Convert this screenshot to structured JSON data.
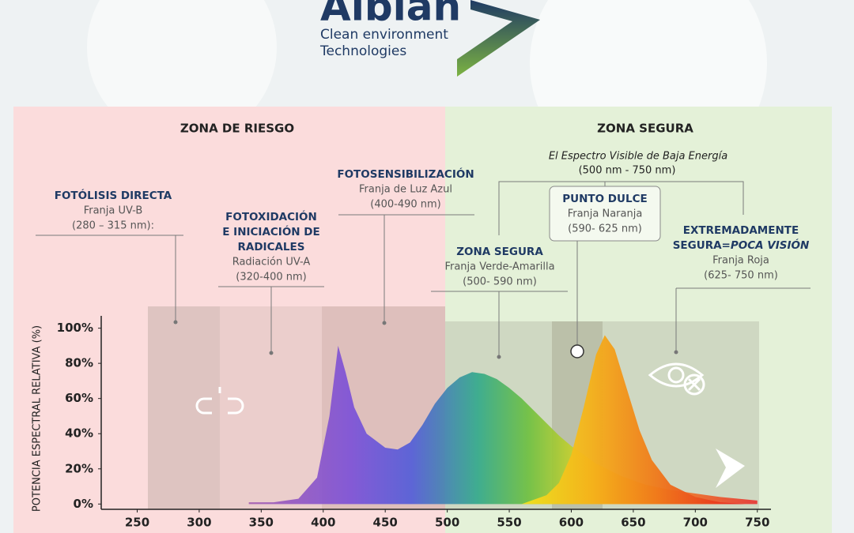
{
  "logo": {
    "name": "Albian",
    "tagline": [
      "Clean environment",
      "Technologies"
    ]
  },
  "zones": [
    "ZONA DE RIESGO",
    "ZONA SEGURA"
  ],
  "visible_spectrum": [
    "El Espectro Visible de Baja Energía",
    "(500 nm - 750 nm)"
  ],
  "annotations": [
    {
      "title": [
        "FOTÓLISIS DIRECTA"
      ],
      "lines": [
        "Franja UV-B",
        "(280 – 315 nm):"
      ]
    },
    {
      "title": [
        "FOTOXIDACIÓN",
        "E INICIACIÓN DE",
        "RADICALES"
      ],
      "lines": [
        "Radiación UV-A",
        "(320-400 nm)"
      ]
    },
    {
      "title": [
        "FOTOSENSIBILIZACIÓN"
      ],
      "lines": [
        "Franja de Luz Azul",
        "(400-490 nm)"
      ]
    },
    {
      "title": [
        "ZONA SEGURA"
      ],
      "lines": [
        "Franja Verde-Amarilla",
        "(500- 590 nm)"
      ]
    },
    {
      "title": [
        "PUNTO DULCE"
      ],
      "lines": [
        "Franja Naranja",
        "(590- 625 nm)"
      ]
    },
    {
      "title": [
        "EXTREMADAMENTE",
        "SEGURA="
      ],
      "title_emphasis": "POCA VISIÓN",
      "lines": [
        "Franja Roja",
        "(625- 750 nm)"
      ]
    }
  ],
  "chart_data": {
    "type": "area",
    "y_label": "POTENCIA ESPECTRAL RELATIVA (%)",
    "xlim": [
      221,
      761
    ],
    "xticks": [
      250,
      300,
      350,
      400,
      450,
      500,
      550,
      600,
      650,
      700,
      750
    ],
    "ylim": [
      -3,
      107
    ],
    "yticks": [
      {
        "value": 0,
        "label": "0%"
      },
      {
        "value": 20,
        "label": "20%"
      },
      {
        "value": 40,
        "label": "40%"
      },
      {
        "value": 60,
        "label": "60%"
      },
      {
        "value": 80,
        "label": "80%"
      },
      {
        "value": 100,
        "label": "100%"
      }
    ],
    "series": [
      {
        "x": [
          340,
          360,
          380,
          395,
          405,
          412,
          418,
          425,
          435,
          450,
          460,
          470,
          480,
          490,
          500,
          510,
          520,
          530,
          540,
          550,
          560,
          570,
          580,
          590,
          600,
          620,
          640,
          660,
          680,
          700,
          720,
          750
        ],
        "values": [
          1,
          1,
          3,
          15,
          50,
          90,
          75,
          55,
          40,
          32,
          31,
          35,
          45,
          57,
          66,
          72,
          75,
          74,
          71,
          66,
          60,
          53,
          46,
          39,
          33,
          23,
          16,
          11,
          8,
          6,
          4,
          2
        ]
      },
      {
        "x": [
          560,
          580,
          590,
          600,
          610,
          620,
          627,
          635,
          645,
          655,
          665,
          680,
          700,
          720,
          740
        ],
        "values": [
          0,
          5,
          12,
          28,
          55,
          85,
          96,
          88,
          65,
          42,
          25,
          11,
          4,
          1,
          0
        ]
      }
    ]
  }
}
